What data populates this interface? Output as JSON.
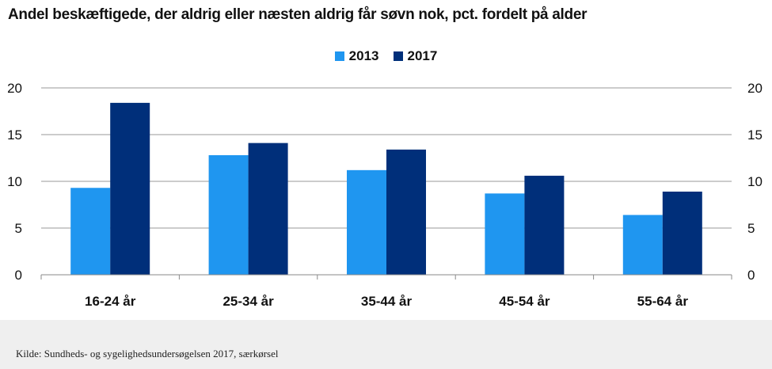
{
  "chart_data": {
    "type": "bar",
    "title": "Andel beskæftigede, der aldrig eller næsten aldrig får søvn nok, pct. fordelt på alder",
    "categories": [
      "16-24 år",
      "25-34 år",
      "35-44 år",
      "45-54 år",
      "55-64 år"
    ],
    "series": [
      {
        "name": "2013",
        "color": "#1f96f0",
        "values": [
          9.3,
          12.8,
          11.2,
          8.7,
          6.4
        ]
      },
      {
        "name": "2017",
        "color": "#002f7a",
        "values": [
          18.4,
          14.1,
          13.4,
          10.6,
          8.9
        ]
      }
    ],
    "ylim": [
      0,
      20
    ],
    "yticks": [
      0,
      5,
      10,
      15,
      20
    ],
    "ytick_labels": [
      "0",
      "5",
      "10",
      "15",
      "20"
    ],
    "secondary_axis": true,
    "grid": true,
    "legend_position": "top-center",
    "xlabel": "",
    "ylabel": ""
  },
  "source": "Kilde: Sundheds- og sygelighedsundersøgelsen 2017, særkørsel"
}
